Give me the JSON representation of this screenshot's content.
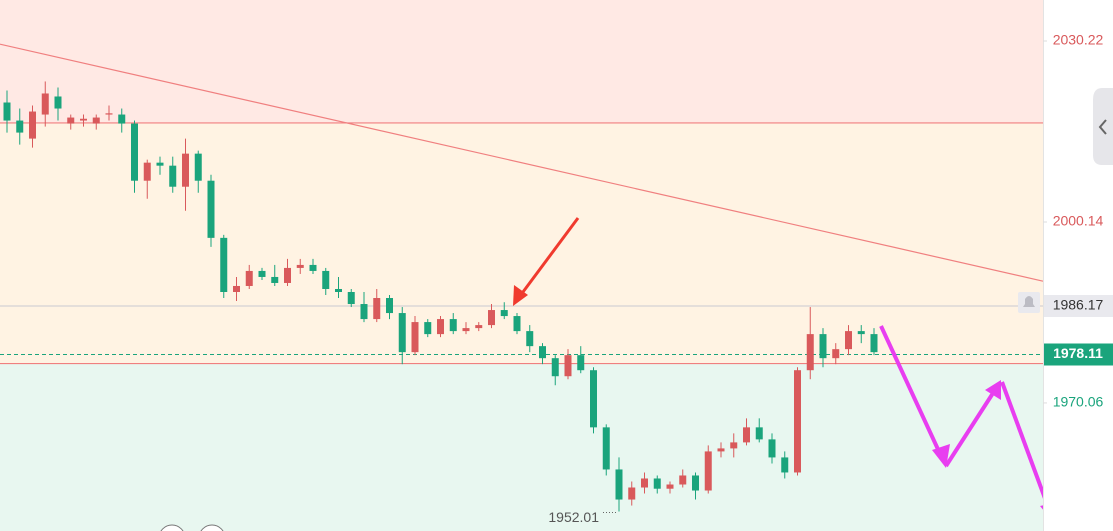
{
  "chart_data": {
    "type": "candlestick",
    "ylim": [
      1948.77,
      2037.04
    ],
    "yticks": [
      1970.06,
      2000.14,
      2030.22
    ],
    "up_color": "#d9595b",
    "down_color": "#1aa47c",
    "zone_bounds": [
      1976.6,
      2016.6
    ],
    "zone_colors": [
      "#e8f7f0",
      "#fff3e3",
      "#ffe9e4"
    ],
    "zone_line_color": "#f07f7f",
    "trendline": [
      2029.7,
      1990.3
    ],
    "alert_price": 1986.17,
    "current_price": 1978.11,
    "low": 1952.01,
    "series": [
      {
        "open": [
          2020,
          2017,
          2014,
          2018,
          2021,
          2016.5,
          2017,
          2016.5,
          2018,
          2018,
          2016.5,
          2007,
          2010,
          2009.5,
          2006,
          2011.5,
          2007,
          1997.5,
          1988.5,
          1989.5,
          1992,
          1991,
          1990,
          1992.5,
          1993,
          1992,
          1989,
          1988.5,
          1986.5,
          1984,
          1987.5,
          1985,
          1978.5,
          1983.5,
          1981.5,
          1984,
          1982,
          1982.5,
          1983,
          1985.5,
          1984.5,
          1982,
          1979.5,
          1977.5,
          1974.5,
          1978,
          1975.5,
          1966,
          1959,
          1954,
          1956,
          1957.5,
          1955.8,
          1956.5,
          1958,
          1955.5,
          1962,
          1962.5,
          1963.5,
          1966,
          1964,
          1961,
          1958.5,
          1975.5,
          1981.5,
          1977.5,
          1979,
          1982,
          1981.5
        ],
        "high": [
          2022,
          2019,
          2019.5,
          2023.5,
          2022.5,
          2018,
          2018,
          2018,
          2019.5,
          2019,
          2017,
          2010.5,
          2011,
          2011,
          2014,
          2012,
          2008,
          1998,
          1991,
          1993,
          1992.5,
          1993,
          1994,
          1994,
          1994,
          1992.5,
          1991,
          1989,
          1988.5,
          1989,
          1988,
          1986,
          1984.5,
          1984,
          1984.5,
          1985,
          1983.5,
          1983.5,
          1986.5,
          1986.8,
          1985,
          1983,
          1980,
          1978,
          1979,
          1979.5,
          1976,
          1966.5,
          1961,
          1957,
          1958.5,
          1958,
          1957,
          1959,
          1958.5,
          1963,
          1963.5,
          1965,
          1967.5,
          1967.5,
          1965,
          1962,
          1976,
          1986,
          1982.5,
          1980,
          1983,
          1983,
          1982.5
        ],
        "low": [
          2015,
          2013,
          2012.5,
          2016,
          2017,
          2015.5,
          2016,
          2015.5,
          2017,
          2015,
          2005,
          2004,
          2008,
          2005,
          2002,
          2005,
          1996,
          1987.5,
          1987,
          1989,
          1990.5,
          1989.5,
          1989.5,
          1991.5,
          1991.5,
          1988,
          1987.5,
          1986,
          1983.5,
          1983.5,
          1984,
          1976.5,
          1978,
          1981,
          1981,
          1981.5,
          1981.5,
          1982,
          1982.5,
          1984,
          1981.5,
          1978.5,
          1976.5,
          1973,
          1974,
          1975,
          1965,
          1958,
          1952.01,
          1953,
          1955,
          1955,
          1955,
          1956,
          1954,
          1955,
          1961,
          1961,
          1963,
          1963.5,
          1960,
          1957.5,
          1958,
          1974,
          1976,
          1976.5,
          1978,
          1980,
          1978
        ],
        "close": [
          2017,
          2015,
          2018.5,
          2021.5,
          2019,
          2017.5,
          2017.3,
          2017.5,
          2018.2,
          2016.5,
          2007,
          2010,
          2009.5,
          2006,
          2011.5,
          2007,
          1997.5,
          1988.5,
          1989.5,
          1992,
          1991,
          1990,
          1992.5,
          1993,
          1992,
          1989,
          1988.5,
          1986.5,
          1984,
          1987.5,
          1985,
          1978.5,
          1983.5,
          1981.5,
          1984,
          1982,
          1982.5,
          1983,
          1985.5,
          1984.5,
          1982,
          1979.5,
          1977.5,
          1974.5,
          1978,
          1975.5,
          1966,
          1959,
          1954,
          1956,
          1957.5,
          1955.8,
          1956.5,
          1958,
          1955.5,
          1962,
          1962.5,
          1963.5,
          1966,
          1964,
          1961,
          1958.5,
          1975.5,
          1981.5,
          1977.5,
          1979,
          1982,
          1981.5,
          1978.5
        ]
      }
    ]
  }
}
